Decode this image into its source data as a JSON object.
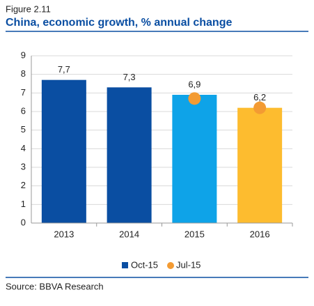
{
  "chart_data": {
    "type": "bar",
    "figure_label": "Figure 2.11",
    "title": "China, economic growth, % annual change",
    "source": "Source: BBVA Research",
    "categories": [
      "2013",
      "2014",
      "2015",
      "2016"
    ],
    "series": [
      {
        "name": "Oct-15",
        "color": "#0a4ea2",
        "bar_colors": [
          "#0a4ea2",
          "#0a4ea2",
          "#0ea3e8",
          "#fdbc2f"
        ],
        "values": [
          7.7,
          7.3,
          6.9,
          6.2
        ],
        "value_labels": [
          "7,7",
          "7,3",
          "6,9",
          "6,2"
        ]
      },
      {
        "name": "Jul-15",
        "type": "dot",
        "color": "#f39b33",
        "values": [
          null,
          null,
          6.7,
          6.2
        ]
      }
    ],
    "ylim": [
      0,
      9
    ],
    "yticks": [
      0,
      1,
      2,
      3,
      4,
      5,
      6,
      7,
      8,
      9
    ],
    "grid": true,
    "legend": "bottom"
  }
}
